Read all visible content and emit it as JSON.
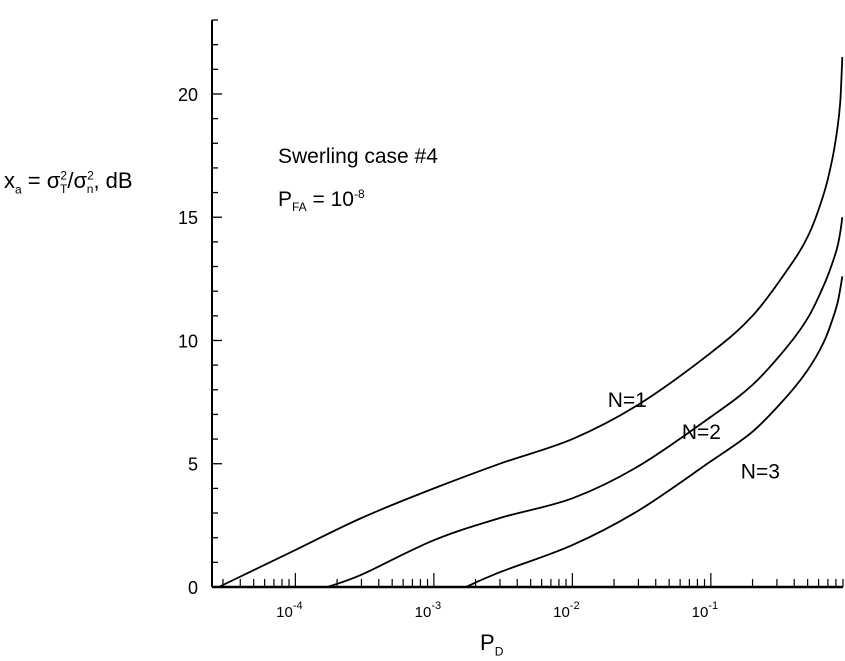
{
  "chart_data": {
    "type": "line",
    "title": "",
    "annotation_case": "Swerling case #4",
    "annotation_pfa": {
      "base": "P",
      "sub": "FA",
      "eq": " = 10",
      "sup": "-8"
    },
    "ylabel": {
      "x": "x",
      "x_sub": "a",
      "eq": " = σ",
      "t_sup": "2",
      "t_sub": "T",
      "slash": "/σ",
      "n_sup": "2",
      "n_sub": "n",
      "unit": ", dB"
    },
    "xlabel": {
      "base": "P",
      "sub": "D"
    },
    "xscale": "log",
    "xlim": [
      2.5e-05,
      0.9
    ],
    "ylim": [
      0,
      23
    ],
    "yticks": [
      0,
      5,
      10,
      15,
      20
    ],
    "xticks": [
      {
        "value": 0.0001,
        "base": "10",
        "exp": "-4"
      },
      {
        "value": 0.001,
        "base": "10",
        "exp": "-3"
      },
      {
        "value": 0.01,
        "base": "10",
        "exp": "-2"
      },
      {
        "value": 0.1,
        "base": "10",
        "exp": "-1"
      }
    ],
    "grid": false,
    "series": [
      {
        "name": "N=1",
        "x": [
          2.8e-05,
          0.0001,
          0.0003,
          0.001,
          0.003,
          0.01,
          0.03,
          0.1,
          0.2,
          0.35,
          0.5,
          0.65,
          0.75,
          0.82,
          0.86,
          0.89
        ],
        "y": [
          0,
          1.5,
          2.8,
          4.0,
          5.0,
          6.0,
          7.4,
          9.5,
          11.0,
          12.8,
          14.2,
          15.9,
          17.3,
          18.6,
          19.7,
          21.5
        ]
      },
      {
        "name": "N=2",
        "x": [
          0.00017,
          0.0003,
          0.001,
          0.003,
          0.01,
          0.03,
          0.1,
          0.2,
          0.35,
          0.5,
          0.65,
          0.75,
          0.82,
          0.86,
          0.89
        ],
        "y": [
          0,
          0.5,
          1.9,
          2.8,
          3.6,
          4.9,
          6.9,
          8.2,
          9.7,
          10.9,
          12.2,
          13.1,
          13.8,
          14.4,
          15.0
        ]
      },
      {
        "name": "N=3",
        "x": [
          0.0017,
          0.003,
          0.01,
          0.03,
          0.1,
          0.2,
          0.35,
          0.5,
          0.65,
          0.75,
          0.82,
          0.86,
          0.89
        ],
        "y": [
          0,
          0.6,
          1.7,
          3.1,
          5.1,
          6.3,
          7.7,
          8.8,
          9.9,
          10.8,
          11.5,
          12.1,
          12.6
        ]
      }
    ],
    "series_labels": [
      "N=1",
      "N=2",
      "N=3"
    ]
  }
}
